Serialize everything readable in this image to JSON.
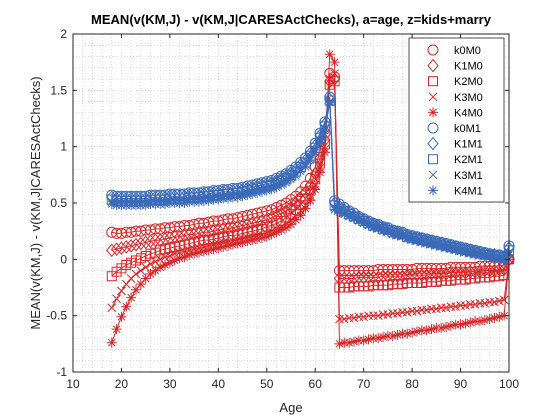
{
  "chart_data": {
    "type": "line",
    "title": "MEAN(v(KM,J) - v(KM,J|CARESActChecks), a=age, z=kids+marry",
    "xlabel": "Age",
    "ylabel": "MEAN(v(KM,J) - v(KM,J|CARESActChecks)",
    "xlim": [
      10,
      100
    ],
    "ylim": [
      -1,
      2
    ],
    "xticks": [
      "10",
      "20",
      "30",
      "40",
      "50",
      "60",
      "70",
      "80",
      "90",
      "100"
    ],
    "yticks": [
      "-1",
      "-0.5",
      "0",
      "0.5",
      "1",
      "1.5",
      "2"
    ],
    "grid": "minor-dotted",
    "legend_position": "top-right",
    "colors": {
      "red": "#d62728",
      "blue": "#3a6ab8",
      "axis": "#262626",
      "grid": "#c8c8c8"
    },
    "x": [
      18,
      19,
      20,
      21,
      22,
      23,
      24,
      25,
      26,
      27,
      28,
      29,
      30,
      31,
      32,
      33,
      34,
      35,
      36,
      37,
      38,
      39,
      40,
      41,
      42,
      43,
      44,
      45,
      46,
      47,
      48,
      49,
      50,
      51,
      52,
      53,
      54,
      55,
      56,
      57,
      58,
      59,
      60,
      61,
      62,
      63,
      64,
      65,
      66,
      67,
      68,
      69,
      70,
      71,
      72,
      73,
      74,
      75,
      76,
      77,
      78,
      79,
      80,
      81,
      82,
      83,
      84,
      85,
      86,
      87,
      88,
      89,
      90,
      91,
      92,
      93,
      94,
      95,
      96,
      97,
      98,
      99,
      100
    ],
    "series": [
      {
        "name": "k0M0",
        "marker": "circle",
        "color": "#d62728",
        "values": [
          0.24,
          0.23,
          0.23,
          0.24,
          0.24,
          0.25,
          0.25,
          0.26,
          0.26,
          0.27,
          0.27,
          0.28,
          0.28,
          0.29,
          0.29,
          0.3,
          0.3,
          0.31,
          0.32,
          0.32,
          0.33,
          0.34,
          0.34,
          0.35,
          0.36,
          0.36,
          0.37,
          0.38,
          0.39,
          0.4,
          0.41,
          0.42,
          0.43,
          0.44,
          0.46,
          0.48,
          0.5,
          0.53,
          0.56,
          0.6,
          0.65,
          0.72,
          0.82,
          0.96,
          1.12,
          1.65,
          1.62,
          -0.1,
          -0.1,
          -0.1,
          -0.1,
          -0.1,
          -0.1,
          -0.1,
          -0.1,
          -0.09,
          -0.09,
          -0.09,
          -0.09,
          -0.09,
          -0.09,
          -0.09,
          -0.09,
          -0.08,
          -0.08,
          -0.08,
          -0.08,
          -0.08,
          -0.08,
          -0.08,
          -0.07,
          -0.07,
          -0.07,
          -0.07,
          -0.07,
          -0.07,
          -0.06,
          -0.06,
          -0.06,
          -0.06,
          -0.06,
          -0.05,
          0.0
        ]
      },
      {
        "name": "K1M0",
        "marker": "diamond",
        "color": "#d62728",
        "values": [
          0.08,
          0.09,
          0.1,
          0.11,
          0.12,
          0.13,
          0.14,
          0.15,
          0.16,
          0.17,
          0.17,
          0.18,
          0.19,
          0.2,
          0.2,
          0.21,
          0.22,
          0.22,
          0.23,
          0.24,
          0.24,
          0.25,
          0.26,
          0.27,
          0.27,
          0.28,
          0.29,
          0.3,
          0.31,
          0.32,
          0.33,
          0.34,
          0.35,
          0.37,
          0.39,
          0.41,
          0.43,
          0.46,
          0.5,
          0.54,
          0.59,
          0.66,
          0.76,
          0.9,
          1.06,
          1.58,
          1.6,
          -0.17,
          -0.17,
          -0.17,
          -0.17,
          -0.16,
          -0.16,
          -0.16,
          -0.16,
          -0.16,
          -0.15,
          -0.15,
          -0.15,
          -0.15,
          -0.15,
          -0.14,
          -0.14,
          -0.14,
          -0.14,
          -0.14,
          -0.13,
          -0.13,
          -0.13,
          -0.13,
          -0.12,
          -0.12,
          -0.12,
          -0.12,
          -0.11,
          -0.11,
          -0.11,
          -0.1,
          -0.1,
          -0.1,
          -0.09,
          -0.09,
          0.0
        ]
      },
      {
        "name": "K2M0",
        "marker": "square",
        "color": "#d62728",
        "values": [
          -0.15,
          -0.11,
          -0.08,
          -0.05,
          -0.03,
          -0.01,
          0.01,
          0.03,
          0.05,
          0.06,
          0.08,
          0.09,
          0.1,
          0.11,
          0.12,
          0.13,
          0.14,
          0.15,
          0.16,
          0.17,
          0.17,
          0.18,
          0.19,
          0.2,
          0.21,
          0.21,
          0.22,
          0.23,
          0.24,
          0.25,
          0.26,
          0.27,
          0.29,
          0.3,
          0.32,
          0.34,
          0.37,
          0.4,
          0.44,
          0.48,
          0.54,
          0.61,
          0.71,
          0.85,
          1.02,
          1.55,
          1.58,
          -0.25,
          -0.25,
          -0.25,
          -0.24,
          -0.24,
          -0.24,
          -0.24,
          -0.23,
          -0.23,
          -0.23,
          -0.23,
          -0.22,
          -0.22,
          -0.22,
          -0.21,
          -0.21,
          -0.21,
          -0.21,
          -0.2,
          -0.2,
          -0.2,
          -0.19,
          -0.19,
          -0.19,
          -0.18,
          -0.18,
          -0.18,
          -0.17,
          -0.17,
          -0.16,
          -0.16,
          -0.16,
          -0.15,
          -0.15,
          -0.14,
          0.0
        ]
      },
      {
        "name": "K3M0",
        "marker": "x",
        "color": "#d62728",
        "values": [
          -0.43,
          -0.35,
          -0.28,
          -0.22,
          -0.17,
          -0.13,
          -0.1,
          -0.07,
          -0.04,
          -0.02,
          0.0,
          0.02,
          0.03,
          0.05,
          0.06,
          0.07,
          0.08,
          0.09,
          0.1,
          0.11,
          0.12,
          0.13,
          0.14,
          0.15,
          0.15,
          0.16,
          0.17,
          0.18,
          0.19,
          0.2,
          0.21,
          0.22,
          0.23,
          0.25,
          0.27,
          0.29,
          0.32,
          0.35,
          0.38,
          0.43,
          0.48,
          0.56,
          0.66,
          0.81,
          0.98,
          1.6,
          1.65,
          -0.53,
          -0.53,
          -0.52,
          -0.52,
          -0.51,
          -0.51,
          -0.5,
          -0.5,
          -0.5,
          -0.49,
          -0.49,
          -0.48,
          -0.48,
          -0.47,
          -0.47,
          -0.46,
          -0.46,
          -0.45,
          -0.45,
          -0.44,
          -0.44,
          -0.43,
          -0.43,
          -0.42,
          -0.42,
          -0.41,
          -0.41,
          -0.4,
          -0.4,
          -0.39,
          -0.39,
          -0.38,
          -0.38,
          -0.37,
          -0.36,
          0.0
        ]
      },
      {
        "name": "K4M0",
        "marker": "asterisk",
        "color": "#d62728",
        "values": [
          -0.74,
          -0.62,
          -0.51,
          -0.42,
          -0.34,
          -0.27,
          -0.22,
          -0.17,
          -0.13,
          -0.1,
          -0.07,
          -0.05,
          -0.03,
          -0.01,
          0.01,
          0.02,
          0.04,
          0.05,
          0.06,
          0.07,
          0.08,
          0.09,
          0.1,
          0.11,
          0.12,
          0.13,
          0.14,
          0.15,
          0.16,
          0.17,
          0.18,
          0.19,
          0.2,
          0.22,
          0.24,
          0.26,
          0.28,
          0.31,
          0.35,
          0.39,
          0.45,
          0.52,
          0.62,
          0.77,
          0.95,
          1.82,
          1.75,
          -0.75,
          -0.74,
          -0.74,
          -0.73,
          -0.72,
          -0.72,
          -0.71,
          -0.7,
          -0.7,
          -0.69,
          -0.68,
          -0.68,
          -0.67,
          -0.66,
          -0.66,
          -0.65,
          -0.64,
          -0.63,
          -0.63,
          -0.62,
          -0.61,
          -0.61,
          -0.6,
          -0.59,
          -0.58,
          -0.58,
          -0.57,
          -0.56,
          -0.55,
          -0.55,
          -0.54,
          -0.53,
          -0.52,
          -0.51,
          -0.5,
          0.0
        ]
      },
      {
        "name": "k0M1",
        "marker": "circle",
        "color": "#3a6ab8",
        "values": [
          0.57,
          0.56,
          0.56,
          0.56,
          0.56,
          0.56,
          0.56,
          0.56,
          0.57,
          0.57,
          0.57,
          0.57,
          0.58,
          0.58,
          0.58,
          0.58,
          0.59,
          0.59,
          0.59,
          0.6,
          0.6,
          0.61,
          0.61,
          0.62,
          0.62,
          0.63,
          0.63,
          0.64,
          0.65,
          0.66,
          0.67,
          0.68,
          0.69,
          0.7,
          0.72,
          0.74,
          0.76,
          0.79,
          0.82,
          0.86,
          0.9,
          0.96,
          1.03,
          1.12,
          1.22,
          1.44,
          0.52,
          0.49,
          0.46,
          0.43,
          0.41,
          0.38,
          0.36,
          0.34,
          0.32,
          0.31,
          0.29,
          0.28,
          0.26,
          0.25,
          0.24,
          0.22,
          0.21,
          0.2,
          0.19,
          0.18,
          0.17,
          0.16,
          0.15,
          0.14,
          0.13,
          0.12,
          0.11,
          0.1,
          0.09,
          0.08,
          0.07,
          0.06,
          0.05,
          0.04,
          0.04,
          0.03,
          0.12
        ]
      },
      {
        "name": "K1M1",
        "marker": "diamond",
        "color": "#3a6ab8",
        "values": [
          0.55,
          0.54,
          0.54,
          0.54,
          0.54,
          0.54,
          0.54,
          0.54,
          0.55,
          0.55,
          0.55,
          0.55,
          0.56,
          0.56,
          0.56,
          0.56,
          0.57,
          0.57,
          0.57,
          0.58,
          0.58,
          0.59,
          0.59,
          0.6,
          0.6,
          0.61,
          0.61,
          0.62,
          0.63,
          0.64,
          0.65,
          0.66,
          0.67,
          0.68,
          0.7,
          0.72,
          0.74,
          0.77,
          0.8,
          0.84,
          0.88,
          0.94,
          1.01,
          1.1,
          1.2,
          1.42,
          0.5,
          0.47,
          0.44,
          0.42,
          0.39,
          0.37,
          0.35,
          0.33,
          0.31,
          0.3,
          0.28,
          0.27,
          0.25,
          0.24,
          0.23,
          0.21,
          0.2,
          0.19,
          0.18,
          0.17,
          0.16,
          0.15,
          0.14,
          0.13,
          0.12,
          0.11,
          0.1,
          0.09,
          0.08,
          0.07,
          0.06,
          0.05,
          0.04,
          0.04,
          0.03,
          0.02,
          0.1
        ]
      },
      {
        "name": "K2M1",
        "marker": "square",
        "color": "#3a6ab8",
        "values": [
          0.53,
          0.52,
          0.52,
          0.52,
          0.52,
          0.52,
          0.52,
          0.52,
          0.53,
          0.53,
          0.53,
          0.53,
          0.54,
          0.54,
          0.54,
          0.54,
          0.55,
          0.55,
          0.55,
          0.56,
          0.56,
          0.57,
          0.57,
          0.58,
          0.58,
          0.59,
          0.59,
          0.6,
          0.61,
          0.62,
          0.63,
          0.64,
          0.65,
          0.66,
          0.68,
          0.7,
          0.72,
          0.75,
          0.78,
          0.82,
          0.86,
          0.92,
          0.99,
          1.08,
          1.18,
          1.41,
          0.48,
          0.45,
          0.43,
          0.4,
          0.38,
          0.36,
          0.34,
          0.32,
          0.3,
          0.29,
          0.27,
          0.26,
          0.24,
          0.23,
          0.22,
          0.2,
          0.19,
          0.18,
          0.17,
          0.16,
          0.15,
          0.14,
          0.13,
          0.12,
          0.11,
          0.1,
          0.09,
          0.08,
          0.07,
          0.06,
          0.05,
          0.04,
          0.04,
          0.03,
          0.02,
          0.01,
          0.08
        ]
      },
      {
        "name": "K3M1",
        "marker": "x",
        "color": "#3a6ab8",
        "values": [
          0.51,
          0.5,
          0.5,
          0.5,
          0.5,
          0.5,
          0.5,
          0.5,
          0.51,
          0.51,
          0.51,
          0.51,
          0.52,
          0.52,
          0.52,
          0.52,
          0.53,
          0.53,
          0.53,
          0.54,
          0.54,
          0.55,
          0.55,
          0.56,
          0.56,
          0.57,
          0.57,
          0.58,
          0.59,
          0.6,
          0.61,
          0.62,
          0.63,
          0.64,
          0.66,
          0.68,
          0.7,
          0.73,
          0.76,
          0.8,
          0.84,
          0.9,
          0.97,
          1.06,
          1.16,
          1.4,
          0.46,
          0.44,
          0.41,
          0.39,
          0.37,
          0.35,
          0.33,
          0.31,
          0.29,
          0.28,
          0.26,
          0.25,
          0.23,
          0.22,
          0.21,
          0.19,
          0.18,
          0.17,
          0.16,
          0.15,
          0.14,
          0.13,
          0.12,
          0.11,
          0.1,
          0.09,
          0.08,
          0.07,
          0.06,
          0.05,
          0.04,
          0.04,
          0.03,
          0.02,
          0.01,
          0.0,
          0.06
        ]
      },
      {
        "name": "K4M1",
        "marker": "asterisk",
        "color": "#3a6ab8",
        "values": [
          0.49,
          0.48,
          0.48,
          0.48,
          0.48,
          0.48,
          0.48,
          0.48,
          0.49,
          0.49,
          0.49,
          0.49,
          0.5,
          0.5,
          0.5,
          0.5,
          0.51,
          0.51,
          0.51,
          0.52,
          0.52,
          0.53,
          0.53,
          0.54,
          0.54,
          0.55,
          0.55,
          0.56,
          0.57,
          0.58,
          0.59,
          0.6,
          0.61,
          0.62,
          0.64,
          0.66,
          0.68,
          0.71,
          0.74,
          0.78,
          0.82,
          0.88,
          0.95,
          1.04,
          1.14,
          1.39,
          0.44,
          0.42,
          0.4,
          0.38,
          0.36,
          0.34,
          0.32,
          0.3,
          0.28,
          0.27,
          0.25,
          0.24,
          0.22,
          0.21,
          0.2,
          0.18,
          0.17,
          0.16,
          0.15,
          0.14,
          0.13,
          0.12,
          0.11,
          0.1,
          0.09,
          0.08,
          0.07,
          0.06,
          0.05,
          0.04,
          0.04,
          0.03,
          0.02,
          0.01,
          0.0,
          -0.01,
          0.04
        ]
      }
    ]
  }
}
